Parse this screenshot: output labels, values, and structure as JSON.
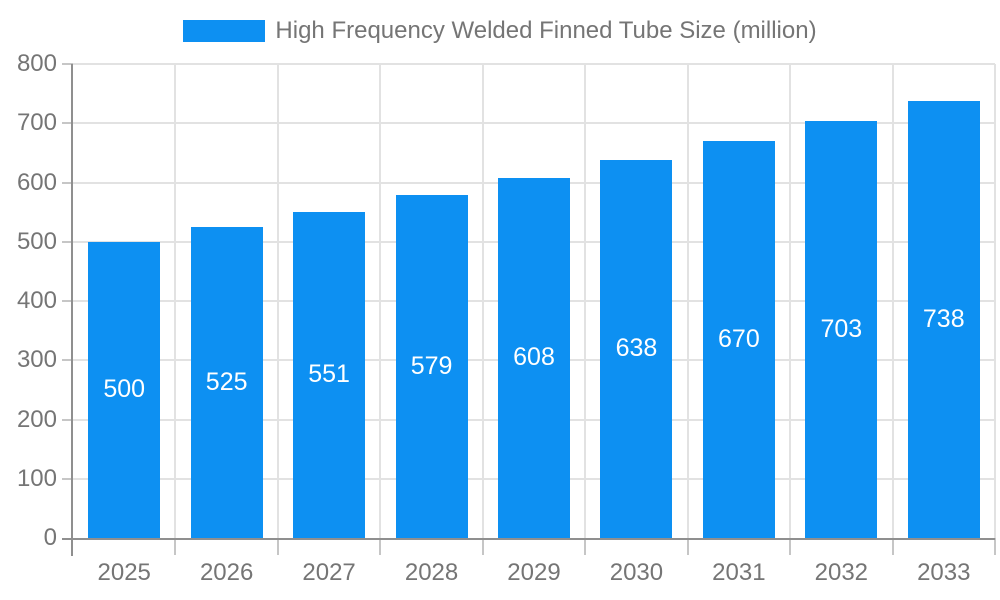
{
  "chart_data": {
    "type": "bar",
    "title": "High Frequency Welded Finned Tube Size (million)",
    "categories": [
      "2025",
      "2026",
      "2027",
      "2028",
      "2029",
      "2030",
      "2031",
      "2032",
      "2033"
    ],
    "series": [
      {
        "name": "High Frequency Welded Finned Tube Size (million)",
        "color": "#0d90f2",
        "values": [
          500,
          525,
          551,
          579,
          608,
          638,
          670,
          703,
          738
        ]
      }
    ],
    "value_labels": {
      "visible": true,
      "position": "inside-center",
      "color": "#ffffff"
    },
    "xlabel": "",
    "ylabel": "",
    "ylim": [
      0,
      800
    ],
    "yticks": [
      0,
      100,
      200,
      300,
      400,
      500,
      600,
      700,
      800
    ],
    "grid": true,
    "legend_position": "top",
    "colors": {
      "axis": "#8f8f8f",
      "grid": "#e2e2e2",
      "tick": "#c6c6c6",
      "axis_text": "#757575",
      "value_text": "#ffffff",
      "background": "#ffffff"
    }
  }
}
